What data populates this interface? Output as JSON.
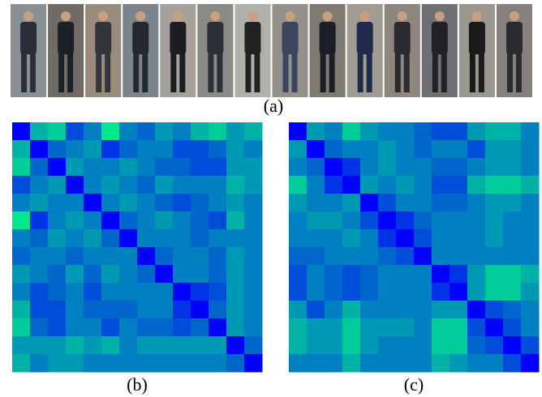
{
  "colormap": {
    "vmin": 0,
    "vmax": 1,
    "low": "#0000ff",
    "high": "#00ff80"
  },
  "panels": [
    {
      "label": "(a)"
    },
    {
      "label": "(b)",
      "matrix": [
        [
          0,
          0.7,
          0.8,
          0.3,
          0.5,
          0.9,
          0.5,
          0.4,
          0.6,
          0.5,
          0.7,
          0.8,
          0.6,
          0.7
        ],
        [
          0.7,
          0,
          0.4,
          0.5,
          0.6,
          0.2,
          0.4,
          0.5,
          0.5,
          0.3,
          0.3,
          0.4,
          0.6,
          0.5
        ],
        [
          0.8,
          0.4,
          0,
          0.6,
          0.5,
          0.5,
          0.6,
          0.5,
          0.4,
          0.4,
          0.3,
          0.3,
          0.6,
          0.6
        ],
        [
          0.3,
          0.5,
          0.6,
          0,
          0.5,
          0.6,
          0.5,
          0.4,
          0.6,
          0.5,
          0.5,
          0.5,
          0.7,
          0.6
        ],
        [
          0.5,
          0.6,
          0.5,
          0.5,
          0,
          0.5,
          0.6,
          0.5,
          0.4,
          0.3,
          0.4,
          0.5,
          0.6,
          0.5
        ],
        [
          0.9,
          0.2,
          0.5,
          0.6,
          0.5,
          0,
          0.4,
          0.5,
          0.6,
          0.5,
          0.4,
          0.3,
          0.7,
          0.5
        ],
        [
          0.5,
          0.4,
          0.6,
          0.5,
          0.6,
          0.4,
          0,
          0.5,
          0.5,
          0.5,
          0.4,
          0.5,
          0.5,
          0.5
        ],
        [
          0.4,
          0.5,
          0.5,
          0.4,
          0.5,
          0.5,
          0.5,
          0,
          0.4,
          0.5,
          0.5,
          0.4,
          0.6,
          0.5
        ],
        [
          0.6,
          0.5,
          0.4,
          0.6,
          0.4,
          0.6,
          0.5,
          0.4,
          0,
          0.5,
          0.5,
          0.4,
          0.6,
          0.5
        ],
        [
          0.5,
          0.3,
          0.4,
          0.5,
          0.3,
          0.5,
          0.5,
          0.5,
          0.5,
          0,
          0.2,
          0.3,
          0.6,
          0.5
        ],
        [
          0.7,
          0.3,
          0.3,
          0.5,
          0.4,
          0.4,
          0.4,
          0.5,
          0.5,
          0.2,
          0,
          0.4,
          0.6,
          0.5
        ],
        [
          0.8,
          0.4,
          0.3,
          0.5,
          0.5,
          0.3,
          0.5,
          0.4,
          0.4,
          0.3,
          0.4,
          0,
          0.6,
          0.5
        ],
        [
          0.6,
          0.6,
          0.6,
          0.7,
          0.6,
          0.7,
          0.5,
          0.6,
          0.6,
          0.6,
          0.6,
          0.6,
          0,
          0.4
        ],
        [
          0.7,
          0.5,
          0.6,
          0.6,
          0.5,
          0.5,
          0.5,
          0.5,
          0.5,
          0.5,
          0.5,
          0.5,
          0.4,
          0
        ]
      ]
    },
    {
      "label": "(c)",
      "matrix": [
        [
          0,
          0.6,
          0.5,
          0.8,
          0.6,
          0.5,
          0.5,
          0.4,
          0.3,
          0.3,
          0.6,
          0.7,
          0.7,
          0.5
        ],
        [
          0.6,
          0,
          0.4,
          0.5,
          0.5,
          0.6,
          0.5,
          0.4,
          0.5,
          0.5,
          0.3,
          0.6,
          0.6,
          0.5
        ],
        [
          0.5,
          0.4,
          0,
          0.2,
          0.5,
          0.6,
          0.5,
          0.5,
          0.4,
          0.4,
          0.5,
          0.6,
          0.6,
          0.5
        ],
        [
          0.8,
          0.5,
          0.2,
          0,
          0.6,
          0.5,
          0.6,
          0.5,
          0.3,
          0.3,
          0.7,
          0.8,
          0.8,
          0.7
        ],
        [
          0.6,
          0.5,
          0.5,
          0.6,
          0,
          0.3,
          0.5,
          0.5,
          0.4,
          0.4,
          0.5,
          0.6,
          0.6,
          0.5
        ],
        [
          0.5,
          0.6,
          0.6,
          0.5,
          0.3,
          0,
          0.2,
          0.4,
          0.5,
          0.5,
          0.5,
          0.6,
          0.5,
          0.5
        ],
        [
          0.5,
          0.5,
          0.5,
          0.6,
          0.5,
          0.2,
          0,
          0.3,
          0.5,
          0.5,
          0.5,
          0.6,
          0.5,
          0.5
        ],
        [
          0.4,
          0.4,
          0.5,
          0.5,
          0.5,
          0.4,
          0.3,
          0,
          0.5,
          0.5,
          0.5,
          0.5,
          0.5,
          0.5
        ],
        [
          0.3,
          0.5,
          0.4,
          0.3,
          0.4,
          0.5,
          0.5,
          0.5,
          0,
          0.2,
          0.6,
          0.8,
          0.8,
          0.7
        ],
        [
          0.3,
          0.5,
          0.4,
          0.3,
          0.4,
          0.5,
          0.5,
          0.5,
          0.2,
          0,
          0.6,
          0.8,
          0.8,
          0.6
        ],
        [
          0.6,
          0.3,
          0.5,
          0.7,
          0.5,
          0.5,
          0.5,
          0.5,
          0.6,
          0.6,
          0,
          0.3,
          0.4,
          0.5
        ],
        [
          0.7,
          0.6,
          0.6,
          0.8,
          0.6,
          0.6,
          0.6,
          0.5,
          0.8,
          0.8,
          0.3,
          0,
          0.3,
          0.5
        ],
        [
          0.7,
          0.6,
          0.6,
          0.8,
          0.6,
          0.5,
          0.5,
          0.5,
          0.8,
          0.8,
          0.4,
          0.3,
          0,
          0.3
        ],
        [
          0.5,
          0.5,
          0.5,
          0.7,
          0.5,
          0.5,
          0.5,
          0.5,
          0.7,
          0.6,
          0.5,
          0.5,
          0.3,
          0
        ]
      ]
    }
  ]
}
